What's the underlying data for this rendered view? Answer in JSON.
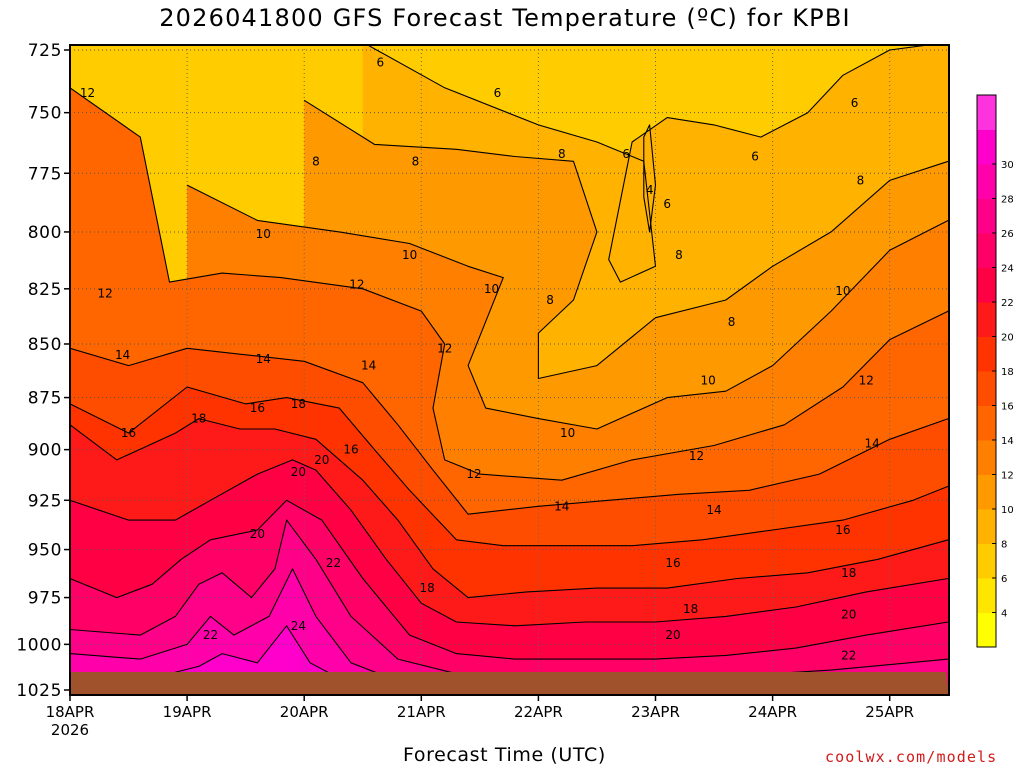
{
  "page": {
    "title": "2026041800 GFS Forecast Temperature (ºC) for KPBI",
    "x_axis_title": "Forecast Time (UTC)",
    "credit": "coolwx.com/models"
  },
  "chart_data": {
    "type": "heatmap",
    "title": "2026041800 GFS Forecast Temperature (ºC) for KPBI",
    "xlabel": "Forecast Time (UTC)",
    "ylabel": "",
    "x_tick_labels": [
      "18APR\n2026",
      "19APR",
      "20APR",
      "21APR",
      "22APR",
      "23APR",
      "24APR",
      "25APR"
    ],
    "y_tick_labels": [
      "725",
      "750",
      "775",
      "800",
      "825",
      "850",
      "875",
      "900",
      "925",
      "950",
      "975",
      "1000",
      "1025"
    ],
    "xlim_days": [
      0,
      7.5
    ],
    "ylim": [
      1025,
      720
    ],
    "y_scale": "log pressure",
    "grid": "dotted gray",
    "colorbar": {
      "levels": [
        2,
        4,
        6,
        8,
        10,
        12,
        14,
        16,
        18,
        20,
        22,
        24,
        26,
        28,
        30,
        32
      ],
      "labels": [
        "4",
        "6",
        "8",
        "10",
        "12",
        "14",
        "16",
        "18",
        "20",
        "22",
        "24",
        "26",
        "28",
        "30"
      ],
      "colors": [
        "#ffff00",
        "#ffe600",
        "#ffcc00",
        "#ffb300",
        "#ff9900",
        "#ff8000",
        "#ff6600",
        "#ff4d00",
        "#ff3300",
        "#ff1a1a",
        "#ff0044",
        "#ff0066",
        "#ff0088",
        "#ff00aa",
        "#ff00cc",
        "#ff33dd"
      ],
      "placement": "right"
    },
    "ground_color": "#a0522d",
    "isotherms": [
      {
        "level": 4,
        "points": [
          [
            4.95,
            755
          ],
          [
            5.0,
            780
          ],
          [
            4.95,
            800
          ],
          [
            4.9,
            785
          ],
          [
            4.9,
            760
          ]
        ]
      },
      {
        "level": 6,
        "points": [
          [
            2.5,
            722
          ],
          [
            3.2,
            740
          ],
          [
            4.0,
            755
          ],
          [
            4.5,
            762
          ],
          [
            4.9,
            770
          ],
          [
            5.0,
            815
          ],
          [
            4.7,
            822
          ],
          [
            4.6,
            812
          ],
          [
            4.8,
            762
          ],
          [
            5.1,
            752
          ],
          [
            5.5,
            755
          ],
          [
            5.9,
            760
          ],
          [
            6.3,
            750
          ],
          [
            6.6,
            735
          ],
          [
            7.0,
            725
          ],
          [
            7.5,
            722
          ]
        ]
      },
      {
        "level": 8,
        "points": [
          [
            2.0,
            745
          ],
          [
            2.6,
            763
          ],
          [
            3.3,
            765
          ],
          [
            3.8,
            768
          ],
          [
            4.3,
            770
          ],
          [
            4.5,
            800
          ],
          [
            4.3,
            830
          ],
          [
            4.0,
            845
          ],
          [
            4.0,
            866
          ],
          [
            4.5,
            860
          ],
          [
            5.0,
            838
          ],
          [
            5.6,
            830
          ],
          [
            6.0,
            815
          ],
          [
            6.5,
            800
          ],
          [
            7.0,
            778
          ],
          [
            7.5,
            770
          ]
        ]
      },
      {
        "level": 10,
        "points": [
          [
            1.0,
            780
          ],
          [
            1.6,
            795
          ],
          [
            2.3,
            800
          ],
          [
            2.9,
            805
          ],
          [
            3.4,
            815
          ],
          [
            3.7,
            820
          ],
          [
            3.4,
            860
          ],
          [
            3.55,
            880
          ],
          [
            4.0,
            885
          ],
          [
            4.5,
            890
          ],
          [
            5.1,
            875
          ],
          [
            5.6,
            872
          ],
          [
            6.0,
            860
          ],
          [
            6.5,
            835
          ],
          [
            7.0,
            808
          ],
          [
            7.5,
            795
          ]
        ]
      },
      {
        "level": 12,
        "points": [
          [
            0.0,
            740
          ],
          [
            0.6,
            760
          ],
          [
            0.85,
            822
          ],
          [
            1.3,
            818
          ],
          [
            1.8,
            820
          ],
          [
            2.5,
            825
          ],
          [
            3.0,
            835
          ],
          [
            3.2,
            850
          ],
          [
            3.1,
            880
          ],
          [
            3.2,
            905
          ],
          [
            3.5,
            912
          ],
          [
            4.2,
            915
          ],
          [
            4.8,
            905
          ],
          [
            5.5,
            898
          ],
          [
            6.1,
            888
          ],
          [
            6.6,
            870
          ],
          [
            7.0,
            848
          ],
          [
            7.5,
            835
          ]
        ]
      },
      {
        "level": 14,
        "points": [
          [
            0.0,
            852
          ],
          [
            0.5,
            860
          ],
          [
            1.0,
            852
          ],
          [
            1.5,
            855
          ],
          [
            2.0,
            858
          ],
          [
            2.5,
            868
          ],
          [
            2.8,
            888
          ],
          [
            3.1,
            910
          ],
          [
            3.4,
            932
          ],
          [
            4.0,
            928
          ],
          [
            4.6,
            925
          ],
          [
            5.2,
            922
          ],
          [
            5.8,
            920
          ],
          [
            6.4,
            912
          ],
          [
            7.0,
            895
          ],
          [
            7.5,
            885
          ]
        ]
      },
      {
        "level": 16,
        "points": [
          [
            0.0,
            878
          ],
          [
            0.5,
            892
          ],
          [
            1.0,
            870
          ],
          [
            1.5,
            878
          ],
          [
            1.85,
            875
          ],
          [
            2.3,
            880
          ],
          [
            2.6,
            900
          ],
          [
            2.9,
            920
          ],
          [
            3.3,
            945
          ],
          [
            3.7,
            948
          ],
          [
            4.2,
            948
          ],
          [
            4.8,
            948
          ],
          [
            5.4,
            945
          ],
          [
            6.0,
            940
          ],
          [
            6.6,
            935
          ],
          [
            7.2,
            925
          ],
          [
            7.5,
            918
          ]
        ]
      },
      {
        "level": 18,
        "points": [
          [
            0.0,
            888
          ],
          [
            0.4,
            905
          ],
          [
            0.9,
            892
          ],
          [
            1.1,
            885
          ],
          [
            1.45,
            890
          ],
          [
            1.75,
            890
          ],
          [
            2.1,
            895
          ],
          [
            2.5,
            915
          ],
          [
            2.8,
            935
          ],
          [
            3.1,
            960
          ],
          [
            3.4,
            975
          ],
          [
            3.9,
            972
          ],
          [
            4.5,
            970
          ],
          [
            5.1,
            970
          ],
          [
            5.7,
            965
          ],
          [
            6.3,
            962
          ],
          [
            6.9,
            955
          ],
          [
            7.5,
            945
          ]
        ]
      },
      {
        "level": 20,
        "points": [
          [
            0.0,
            925
          ],
          [
            0.5,
            935
          ],
          [
            0.9,
            935
          ],
          [
            1.2,
            925
          ],
          [
            1.6,
            912
          ],
          [
            1.9,
            905
          ],
          [
            2.1,
            910
          ],
          [
            2.4,
            930
          ],
          [
            2.7,
            955
          ],
          [
            3.0,
            978
          ],
          [
            3.3,
            988
          ],
          [
            3.8,
            990
          ],
          [
            4.4,
            988
          ],
          [
            5.0,
            988
          ],
          [
            5.6,
            985
          ],
          [
            6.2,
            980
          ],
          [
            6.8,
            972
          ],
          [
            7.5,
            965
          ]
        ]
      },
      {
        "level": 22,
        "points": [
          [
            0.0,
            965
          ],
          [
            0.4,
            975
          ],
          [
            0.7,
            968
          ],
          [
            0.95,
            955
          ],
          [
            1.2,
            945
          ],
          [
            1.6,
            940
          ],
          [
            1.85,
            925
          ],
          [
            2.15,
            935
          ],
          [
            2.5,
            965
          ],
          [
            2.9,
            995
          ],
          [
            3.3,
            1005
          ],
          [
            3.8,
            1008
          ],
          [
            4.4,
            1008
          ],
          [
            5.0,
            1008
          ],
          [
            5.6,
            1006
          ],
          [
            6.2,
            1002
          ],
          [
            6.8,
            995
          ],
          [
            7.5,
            988
          ]
        ]
      },
      {
        "level": 24,
        "points": [
          [
            0.0,
            992
          ],
          [
            0.6,
            995
          ],
          [
            0.9,
            985
          ],
          [
            1.1,
            968
          ],
          [
            1.3,
            962
          ],
          [
            1.55,
            975
          ],
          [
            1.75,
            960
          ],
          [
            1.85,
            935
          ],
          [
            2.1,
            955
          ],
          [
            2.4,
            985
          ],
          [
            2.8,
            1008
          ],
          [
            3.3,
            1016
          ],
          [
            4.5,
            1018
          ],
          [
            5.5,
            1018
          ],
          [
            6.5,
            1014
          ],
          [
            7.5,
            1008
          ]
        ]
      },
      {
        "level": 26,
        "points": [
          [
            0.0,
            1005
          ],
          [
            0.6,
            1008
          ],
          [
            1.0,
            1000
          ],
          [
            1.2,
            985
          ],
          [
            1.4,
            995
          ],
          [
            1.7,
            985
          ],
          [
            1.9,
            960
          ],
          [
            2.1,
            985
          ],
          [
            2.4,
            1010
          ],
          [
            2.8,
            1020
          ],
          [
            3.3,
            1024
          ]
        ]
      },
      {
        "level": 28,
        "points": [
          [
            0.6,
            1020
          ],
          [
            1.1,
            1012
          ],
          [
            1.3,
            1005
          ],
          [
            1.6,
            1010
          ],
          [
            1.85,
            990
          ],
          [
            2.05,
            1010
          ],
          [
            2.4,
            1022
          ]
        ]
      }
    ],
    "contour_labels": [
      {
        "text": "6",
        "x": 2.65,
        "y": 730
      },
      {
        "text": "6",
        "x": 3.65,
        "y": 742
      },
      {
        "text": "6",
        "x": 4.75,
        "y": 767
      },
      {
        "text": "6",
        "x": 5.85,
        "y": 768
      },
      {
        "text": "6",
        "x": 6.7,
        "y": 746
      },
      {
        "text": "4",
        "x": 4.95,
        "y": 782
      },
      {
        "text": "6",
        "x": 5.1,
        "y": 788
      },
      {
        "text": "8",
        "x": 2.1,
        "y": 770
      },
      {
        "text": "8",
        "x": 2.95,
        "y": 770
      },
      {
        "text": "8",
        "x": 4.2,
        "y": 767
      },
      {
        "text": "8",
        "x": 5.2,
        "y": 810
      },
      {
        "text": "8",
        "x": 4.1,
        "y": 830
      },
      {
        "text": "8",
        "x": 5.65,
        "y": 840
      },
      {
        "text": "8",
        "x": 6.75,
        "y": 778
      },
      {
        "text": "10",
        "x": 1.65,
        "y": 801
      },
      {
        "text": "10",
        "x": 2.9,
        "y": 810
      },
      {
        "text": "10",
        "x": 3.6,
        "y": 825
      },
      {
        "text": "10",
        "x": 4.25,
        "y": 892
      },
      {
        "text": "10",
        "x": 5.45,
        "y": 867
      },
      {
        "text": "10",
        "x": 6.6,
        "y": 826
      },
      {
        "text": "12",
        "x": 0.15,
        "y": 742
      },
      {
        "text": "12",
        "x": 0.3,
        "y": 827
      },
      {
        "text": "12",
        "x": 2.45,
        "y": 823
      },
      {
        "text": "12",
        "x": 3.2,
        "y": 852
      },
      {
        "text": "12",
        "x": 3.45,
        "y": 912
      },
      {
        "text": "12",
        "x": 5.35,
        "y": 903
      },
      {
        "text": "12",
        "x": 6.8,
        "y": 867
      },
      {
        "text": "14",
        "x": 0.45,
        "y": 855
      },
      {
        "text": "14",
        "x": 1.65,
        "y": 857
      },
      {
        "text": "14",
        "x": 2.55,
        "y": 860
      },
      {
        "text": "14",
        "x": 4.2,
        "y": 928
      },
      {
        "text": "14",
        "x": 5.5,
        "y": 930
      },
      {
        "text": "14",
        "x": 6.85,
        "y": 897
      },
      {
        "text": "16",
        "x": 0.5,
        "y": 892
      },
      {
        "text": "16",
        "x": 1.6,
        "y": 880
      },
      {
        "text": "16",
        "x": 2.4,
        "y": 900
      },
      {
        "text": "16",
        "x": 5.15,
        "y": 957
      },
      {
        "text": "16",
        "x": 6.6,
        "y": 940
      },
      {
        "text": "18",
        "x": 1.1,
        "y": 885
      },
      {
        "text": "18",
        "x": 1.95,
        "y": 878
      },
      {
        "text": "18",
        "x": 3.05,
        "y": 970
      },
      {
        "text": "18",
        "x": 5.3,
        "y": 981
      },
      {
        "text": "18",
        "x": 6.65,
        "y": 962
      },
      {
        "text": "20",
        "x": 1.95,
        "y": 911
      },
      {
        "text": "20",
        "x": 2.15,
        "y": 905
      },
      {
        "text": "20",
        "x": 1.6,
        "y": 942
      },
      {
        "text": "20",
        "x": 5.15,
        "y": 995
      },
      {
        "text": "20",
        "x": 6.65,
        "y": 984
      },
      {
        "text": "22",
        "x": 2.25,
        "y": 957
      },
      {
        "text": "22",
        "x": 1.2,
        "y": 995
      },
      {
        "text": "22",
        "x": 6.65,
        "y": 1006
      },
      {
        "text": "24",
        "x": 1.95,
        "y": 990
      }
    ]
  }
}
